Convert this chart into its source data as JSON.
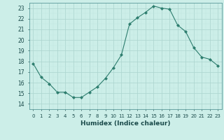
{
  "x": [
    0,
    1,
    2,
    3,
    4,
    5,
    6,
    7,
    8,
    9,
    10,
    11,
    12,
    13,
    14,
    15,
    16,
    17,
    18,
    19,
    20,
    21,
    22,
    23
  ],
  "y": [
    17.8,
    16.5,
    15.9,
    15.1,
    15.1,
    14.6,
    14.6,
    15.1,
    15.6,
    16.4,
    17.4,
    18.6,
    21.5,
    22.1,
    22.6,
    23.2,
    23.0,
    22.9,
    21.4,
    20.8,
    19.3,
    18.4,
    18.2,
    17.6
  ],
  "line_color": "#2d7d6e",
  "marker": "D",
  "marker_size": 2.0,
  "bg_color": "#cceee8",
  "grid_major_color": "#aad4ce",
  "grid_minor_color": "#c0e6e0",
  "xlabel": "Humidex (Indice chaleur)",
  "ylim": [
    14,
    23.5
  ],
  "xlim": [
    -0.5,
    23.5
  ],
  "yticks": [
    14,
    15,
    16,
    17,
    18,
    19,
    20,
    21,
    22,
    23
  ],
  "xticks": [
    0,
    1,
    2,
    3,
    4,
    5,
    6,
    7,
    8,
    9,
    10,
    11,
    12,
    13,
    14,
    15,
    16,
    17,
    18,
    19,
    20,
    21,
    22,
    23
  ]
}
